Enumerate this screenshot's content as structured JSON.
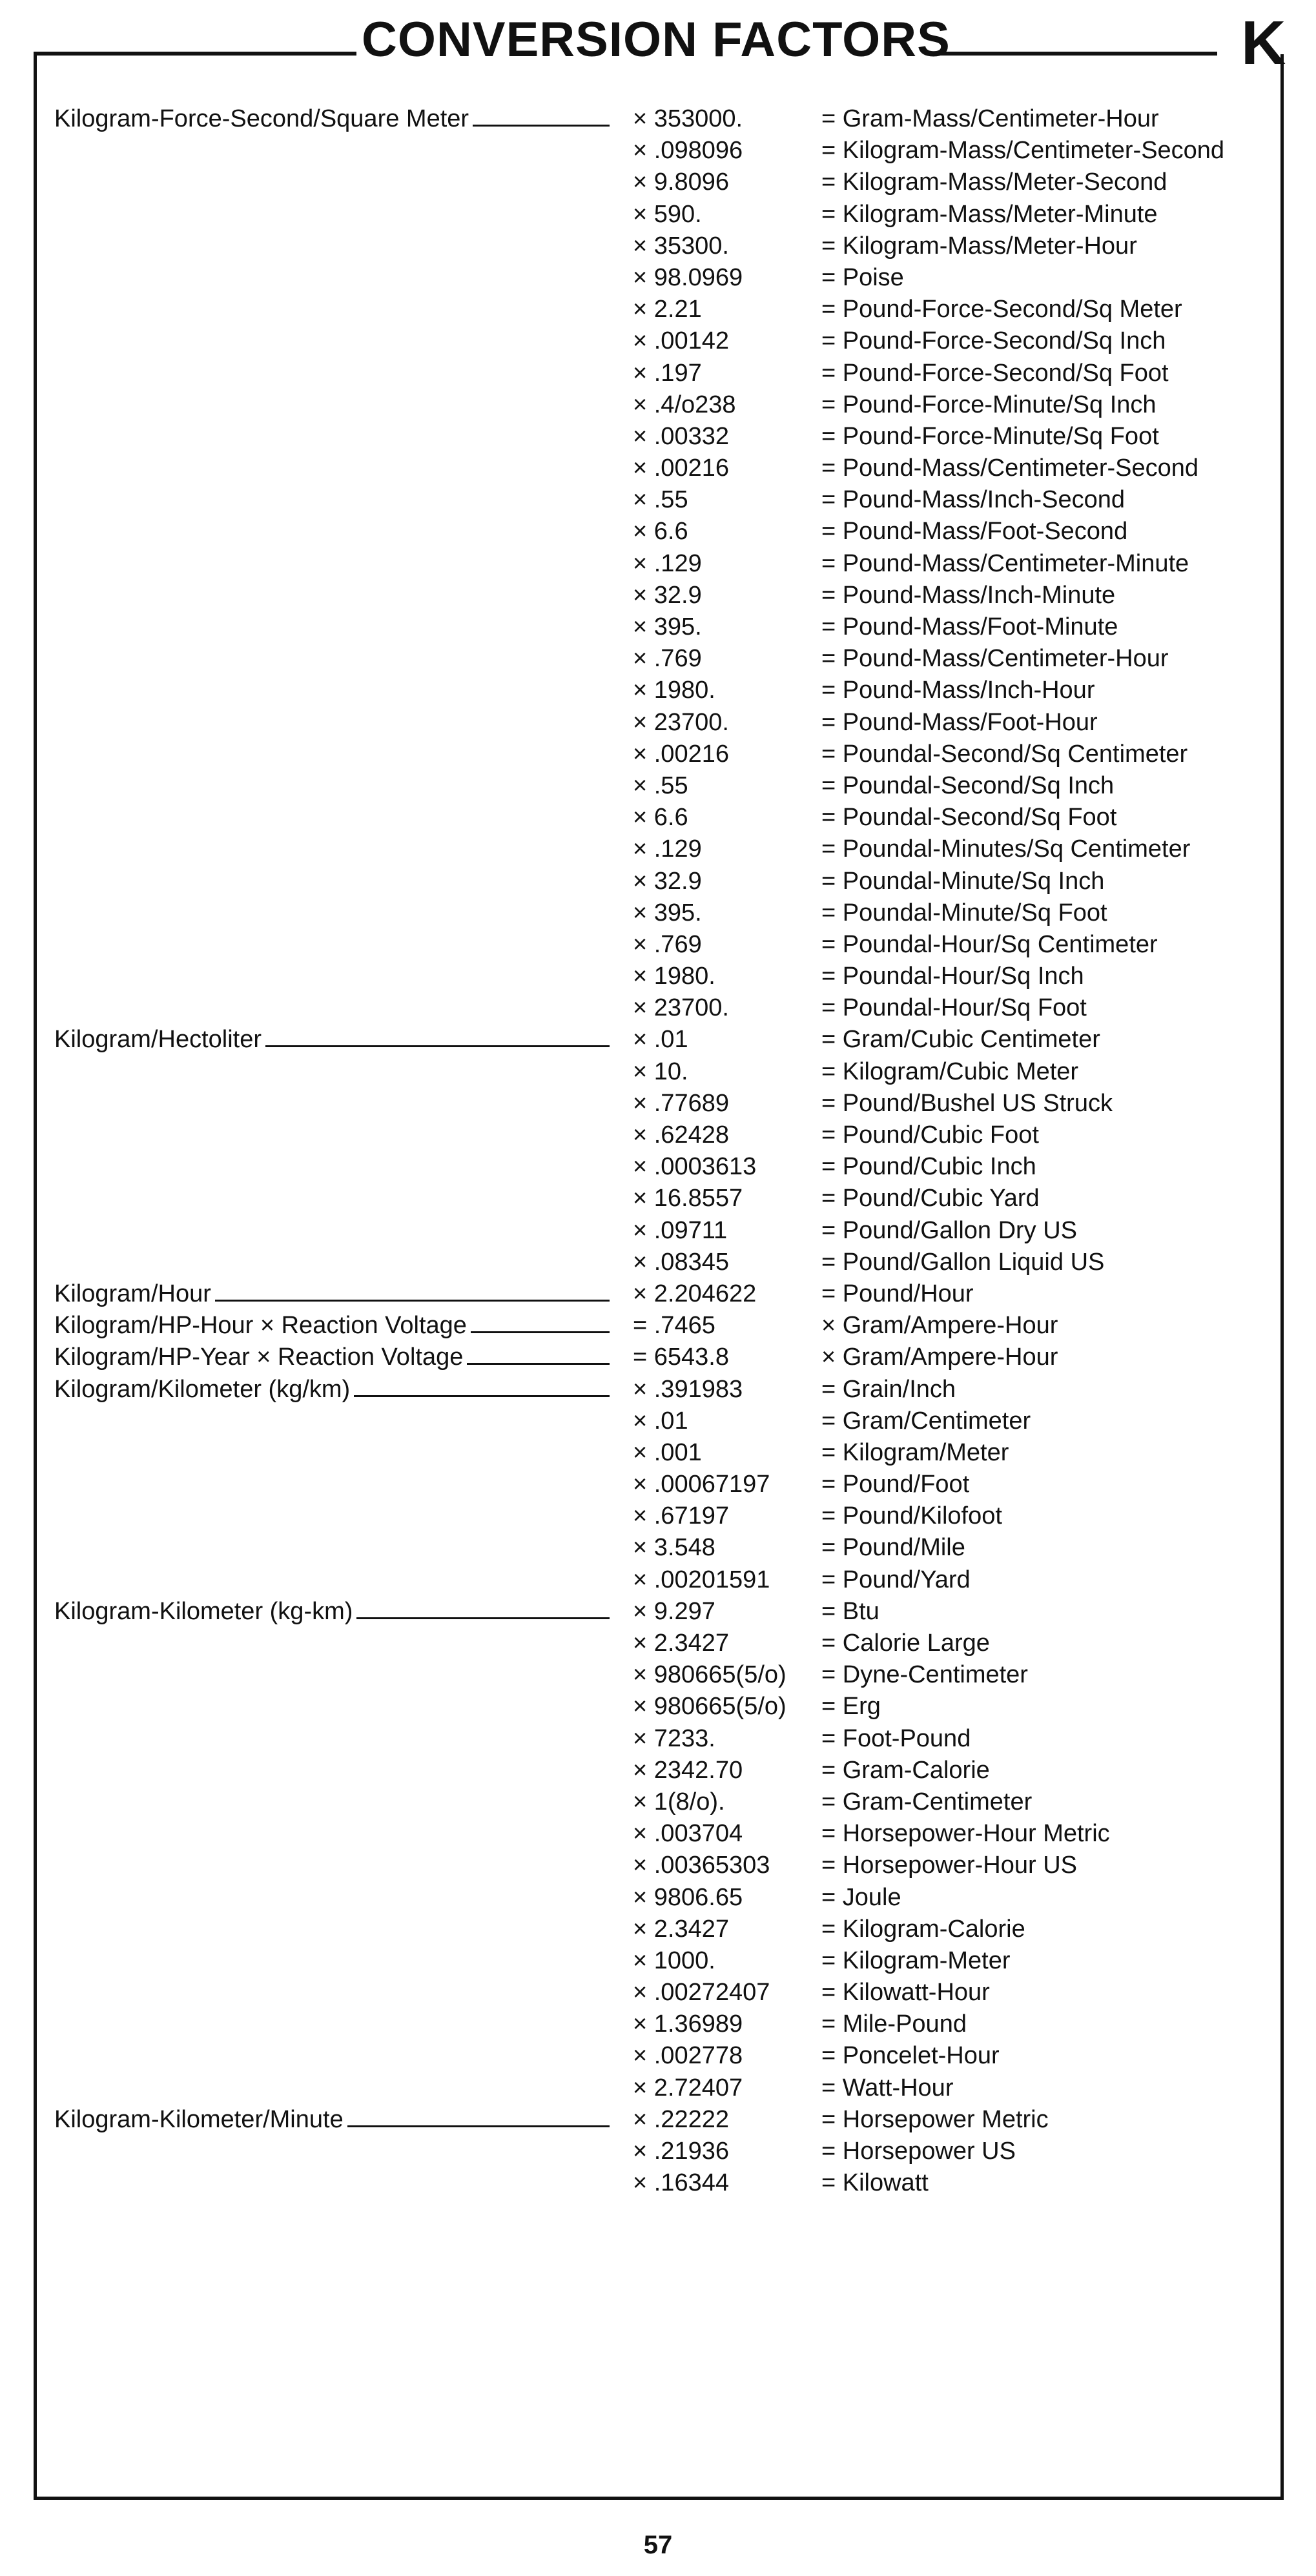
{
  "header": {
    "title": "CONVERSION FACTORS",
    "section_letter": "K"
  },
  "page_number": "57",
  "rows": [
    {
      "label": "Kilogram-Force-Second/Square Meter",
      "factor": "× 353000.",
      "result": "= Gram-Mass/Centimeter-Hour"
    },
    {
      "label": "",
      "factor": "× .098096",
      "result": "= Kilogram-Mass/Centimeter-Second"
    },
    {
      "label": "",
      "factor": "× 9.8096",
      "result": "= Kilogram-Mass/Meter-Second"
    },
    {
      "label": "",
      "factor": "× 590.",
      "result": "= Kilogram-Mass/Meter-Minute"
    },
    {
      "label": "",
      "factor": "× 35300.",
      "result": "= Kilogram-Mass/Meter-Hour"
    },
    {
      "label": "",
      "factor": "× 98.0969",
      "result": "= Poise"
    },
    {
      "label": "",
      "factor": "× 2.21",
      "result": "= Pound-Force-Second/Sq Meter"
    },
    {
      "label": "",
      "factor": "× .00142",
      "result": "= Pound-Force-Second/Sq Inch"
    },
    {
      "label": "",
      "factor": "× .197",
      "result": "= Pound-Force-Second/Sq Foot"
    },
    {
      "label": "",
      "factor": "× .4/o238",
      "result": "= Pound-Force-Minute/Sq Inch"
    },
    {
      "label": "",
      "factor": "× .00332",
      "result": "= Pound-Force-Minute/Sq Foot"
    },
    {
      "label": "",
      "factor": "× .00216",
      "result": "= Pound-Mass/Centimeter-Second"
    },
    {
      "label": "",
      "factor": "× .55",
      "result": "= Pound-Mass/Inch-Second"
    },
    {
      "label": "",
      "factor": "× 6.6",
      "result": "= Pound-Mass/Foot-Second"
    },
    {
      "label": "",
      "factor": "× .129",
      "result": "= Pound-Mass/Centimeter-Minute"
    },
    {
      "label": "",
      "factor": "× 32.9",
      "result": "= Pound-Mass/Inch-Minute"
    },
    {
      "label": "",
      "factor": "× 395.",
      "result": "= Pound-Mass/Foot-Minute"
    },
    {
      "label": "",
      "factor": "× .769",
      "result": "= Pound-Mass/Centimeter-Hour"
    },
    {
      "label": "",
      "factor": "× 1980.",
      "result": "= Pound-Mass/Inch-Hour"
    },
    {
      "label": "",
      "factor": "× 23700.",
      "result": "= Pound-Mass/Foot-Hour"
    },
    {
      "label": "",
      "factor": "× .00216",
      "result": "= Poundal-Second/Sq Centimeter"
    },
    {
      "label": "",
      "factor": "× .55",
      "result": "= Poundal-Second/Sq Inch"
    },
    {
      "label": "",
      "factor": "× 6.6",
      "result": "= Poundal-Second/Sq Foot"
    },
    {
      "label": "",
      "factor": "× .129",
      "result": "= Poundal-Minutes/Sq Centimeter"
    },
    {
      "label": "",
      "factor": "× 32.9",
      "result": "= Poundal-Minute/Sq Inch"
    },
    {
      "label": "",
      "factor": "× 395.",
      "result": "= Poundal-Minute/Sq Foot"
    },
    {
      "label": "",
      "factor": "× .769",
      "result": "= Poundal-Hour/Sq Centimeter"
    },
    {
      "label": "",
      "factor": "× 1980.",
      "result": "= Poundal-Hour/Sq Inch"
    },
    {
      "label": "",
      "factor": "× 23700.",
      "result": "= Poundal-Hour/Sq Foot"
    },
    {
      "label": "Kilogram/Hectoliter",
      "factor": "× .01",
      "result": "= Gram/Cubic Centimeter"
    },
    {
      "label": "",
      "factor": "× 10.",
      "result": "= Kilogram/Cubic Meter"
    },
    {
      "label": "",
      "factor": "× .77689",
      "result": "= Pound/Bushel US Struck"
    },
    {
      "label": "",
      "factor": "× .62428",
      "result": "= Pound/Cubic Foot"
    },
    {
      "label": "",
      "factor": "× .0003613",
      "result": "= Pound/Cubic Inch"
    },
    {
      "label": "",
      "factor": "× 16.8557",
      "result": "= Pound/Cubic Yard"
    },
    {
      "label": "",
      "factor": "× .09711",
      "result": "= Pound/Gallon Dry US"
    },
    {
      "label": "",
      "factor": "× .08345",
      "result": "= Pound/Gallon Liquid US"
    },
    {
      "label": "Kilogram/Hour",
      "factor": "× 2.204622",
      "result": "= Pound/Hour"
    },
    {
      "label": "Kilogram/HP-Hour × Reaction Voltage",
      "factor": "= .7465",
      "result": "× Gram/Ampere-Hour"
    },
    {
      "label": "Kilogram/HP-Year × Reaction Voltage",
      "factor": "= 6543.8",
      "result": "× Gram/Ampere-Hour"
    },
    {
      "label": "Kilogram/Kilometer (kg/km)",
      "factor": "× .391983",
      "result": "= Grain/Inch"
    },
    {
      "label": "",
      "factor": "× .01",
      "result": "= Gram/Centimeter"
    },
    {
      "label": "",
      "factor": "× .001",
      "result": "= Kilogram/Meter"
    },
    {
      "label": "",
      "factor": "× .00067197",
      "result": "= Pound/Foot"
    },
    {
      "label": "",
      "factor": "× .67197",
      "result": "= Pound/Kilofoot"
    },
    {
      "label": "",
      "factor": "× 3.548",
      "result": "= Pound/Mile"
    },
    {
      "label": "",
      "factor": "× .00201591",
      "result": "= Pound/Yard"
    },
    {
      "label": "Kilogram-Kilometer (kg-km)",
      "factor": "× 9.297",
      "result": "= Btu"
    },
    {
      "label": "",
      "factor": "× 2.3427",
      "result": "= Calorie Large"
    },
    {
      "label": "",
      "factor": "× 980665(5/o)",
      "result": "= Dyne-Centimeter"
    },
    {
      "label": "",
      "factor": "× 980665(5/o)",
      "result": "= Erg"
    },
    {
      "label": "",
      "factor": "× 7233.",
      "result": "= Foot-Pound"
    },
    {
      "label": "",
      "factor": "× 2342.70",
      "result": "= Gram-Calorie"
    },
    {
      "label": "",
      "factor": "× 1(8/o).",
      "result": "= Gram-Centimeter"
    },
    {
      "label": "",
      "factor": "× .003704",
      "result": "= Horsepower-Hour Metric"
    },
    {
      "label": "",
      "factor": "× .00365303",
      "result": "= Horsepower-Hour US"
    },
    {
      "label": "",
      "factor": "× 9806.65",
      "result": "= Joule"
    },
    {
      "label": "",
      "factor": "× 2.3427",
      "result": "= Kilogram-Calorie"
    },
    {
      "label": "",
      "factor": "× 1000.",
      "result": "= Kilogram-Meter"
    },
    {
      "label": "",
      "factor": "× .00272407",
      "result": "= Kilowatt-Hour"
    },
    {
      "label": "",
      "factor": "× 1.36989",
      "result": "= Mile-Pound"
    },
    {
      "label": "",
      "factor": "× .002778",
      "result": "= Poncelet-Hour"
    },
    {
      "label": "",
      "factor": "× 2.72407",
      "result": "= Watt-Hour"
    },
    {
      "label": "Kilogram-Kilometer/Minute",
      "factor": "× .22222",
      "result": "= Horsepower Metric"
    },
    {
      "label": "",
      "factor": "× .21936",
      "result": "= Horsepower US"
    },
    {
      "label": "",
      "factor": "× .16344",
      "result": "= Kilowatt"
    }
  ]
}
